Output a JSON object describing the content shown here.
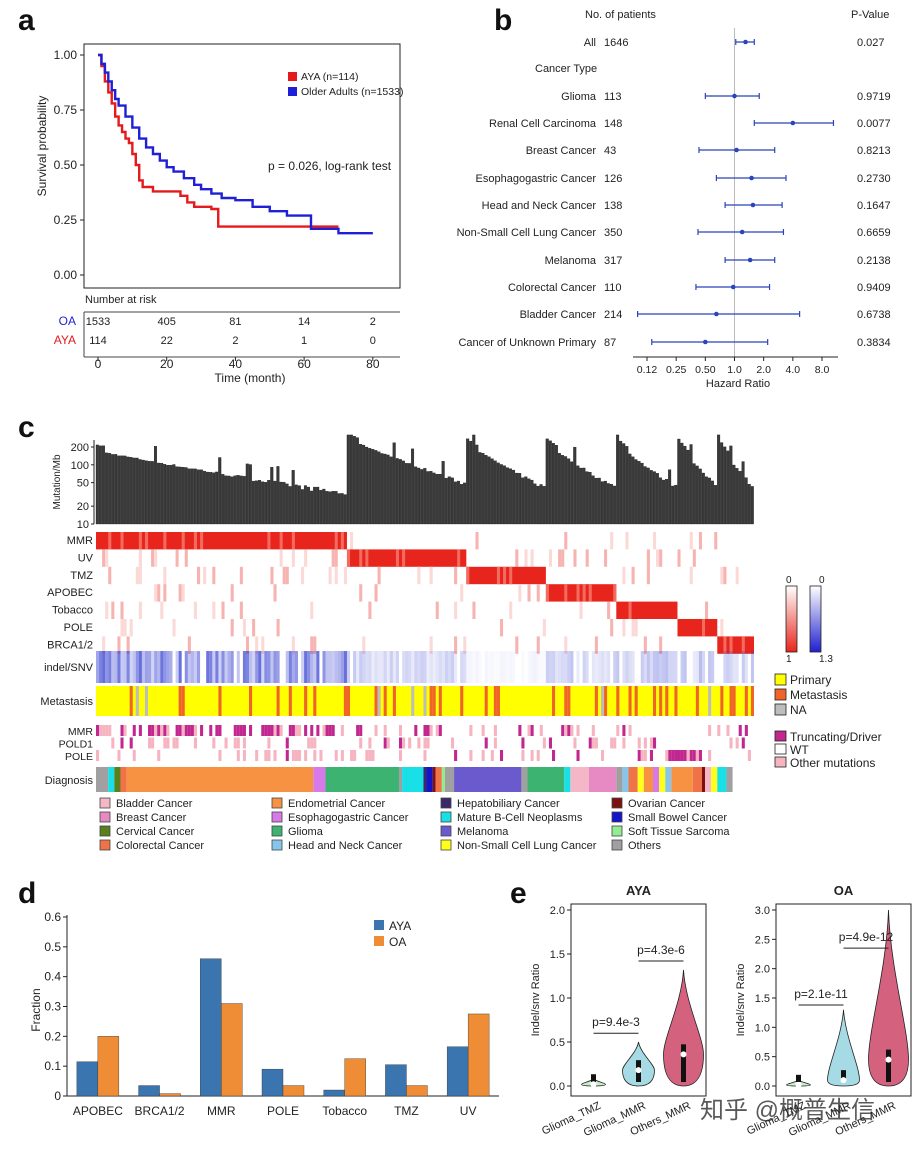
{
  "panels": {
    "a": "a",
    "b": "b",
    "c": "c",
    "d": "d",
    "e": "e"
  },
  "watermark": "知乎 @概普生信",
  "chart_data": [
    {
      "id": "panel_a",
      "type": "line",
      "title": "",
      "xlabel": "Time (month)",
      "ylabel": "Survival probability",
      "xlim": [
        0,
        85
      ],
      "ylim": [
        0,
        1
      ],
      "xticks": [
        0,
        20,
        40,
        60,
        80
      ],
      "yticks": [
        "0.00",
        "0.25",
        "0.50",
        "0.75",
        "1.00"
      ],
      "annotation": "p = 0.026, log-rank test",
      "colors": {
        "AYA": "#e41a1c",
        "OA": "#1f1fd6"
      },
      "series": [
        {
          "name": "AYA (n=114)",
          "color": "#e41a1c",
          "x": [
            0,
            1,
            2,
            3,
            4,
            5,
            6,
            7,
            8,
            9,
            10,
            11,
            12,
            13,
            14,
            16,
            18,
            20,
            22,
            24,
            26,
            28,
            30,
            33,
            35,
            40,
            50,
            60,
            64,
            70
          ],
          "y": [
            1.0,
            0.95,
            0.88,
            0.83,
            0.78,
            0.72,
            0.68,
            0.65,
            0.62,
            0.6,
            0.55,
            0.5,
            0.43,
            0.4,
            0.4,
            0.38,
            0.38,
            0.38,
            0.38,
            0.36,
            0.33,
            0.31,
            0.31,
            0.3,
            0.22,
            0.22,
            0.22,
            0.22,
            0.22,
            0.22
          ]
        },
        {
          "name": "Older Adults (n=1533)",
          "color": "#1f1fd6",
          "x": [
            0,
            1,
            2,
            3,
            4,
            5,
            6,
            8,
            10,
            12,
            14,
            16,
            18,
            20,
            22,
            25,
            28,
            30,
            33,
            36,
            40,
            45,
            50,
            55,
            60,
            62,
            65,
            70,
            75,
            80
          ],
          "y": [
            1.0,
            0.96,
            0.92,
            0.88,
            0.84,
            0.8,
            0.77,
            0.72,
            0.67,
            0.62,
            0.58,
            0.55,
            0.52,
            0.49,
            0.47,
            0.44,
            0.41,
            0.39,
            0.37,
            0.35,
            0.34,
            0.31,
            0.29,
            0.27,
            0.27,
            0.21,
            0.21,
            0.19,
            0.19,
            0.19
          ]
        }
      ],
      "risk_table": {
        "title": "Number at risk",
        "rows": [
          {
            "label": "OA",
            "color": "#1f1fd6",
            "values": [
              "1533",
              "405",
              "81",
              "14",
              "2"
            ]
          },
          {
            "label": "AYA",
            "color": "#e41a1c",
            "values": [
              "114",
              "22",
              "2",
              "1",
              "0"
            ]
          }
        ]
      }
    },
    {
      "id": "panel_b",
      "type": "forest",
      "header_n": "No. of patients",
      "header_p": "P-Value",
      "section_label": "Cancer Type",
      "xlabel": "Hazard Ratio",
      "xticks": [
        "0.12",
        "0.25",
        "0.50",
        "1.0",
        "2.0",
        "4.0",
        "8.0"
      ],
      "xtick_values": [
        0.125,
        0.25,
        0.5,
        1,
        2,
        4,
        8
      ],
      "rows": [
        {
          "label": "All",
          "n": "1646",
          "hr": 1.3,
          "lo": 1.03,
          "hi": 1.6,
          "p": "0.027"
        },
        {
          "label": "Glioma",
          "n": "113",
          "hr": 1.0,
          "lo": 0.5,
          "hi": 1.8,
          "p": "0.9719"
        },
        {
          "label": "Renal Cell Carcinoma",
          "n": "148",
          "hr": 4.0,
          "lo": 1.6,
          "hi": 10.5,
          "p": "0.0077"
        },
        {
          "label": "Breast Cancer",
          "n": "43",
          "hr": 1.05,
          "lo": 0.43,
          "hi": 2.6,
          "p": "0.8213"
        },
        {
          "label": "Esophagogastric Cancer",
          "n": "126",
          "hr": 1.5,
          "lo": 0.65,
          "hi": 3.4,
          "p": "0.2730"
        },
        {
          "label": "Head and Neck Cancer",
          "n": "138",
          "hr": 1.55,
          "lo": 0.8,
          "hi": 3.1,
          "p": "0.1647"
        },
        {
          "label": "Non-Small Cell Lung Cancer",
          "n": "350",
          "hr": 1.2,
          "lo": 0.42,
          "hi": 3.2,
          "p": "0.6659"
        },
        {
          "label": "Melanoma",
          "n": "317",
          "hr": 1.45,
          "lo": 0.8,
          "hi": 2.6,
          "p": "0.2138"
        },
        {
          "label": "Colorectal Cancer",
          "n": "110",
          "hr": 0.97,
          "lo": 0.4,
          "hi": 2.3,
          "p": "0.9409"
        },
        {
          "label": "Bladder Cancer",
          "n": "214",
          "hr": 0.65,
          "lo": 0.1,
          "hi": 4.7,
          "p": "0.6738"
        },
        {
          "label": "Cancer of Unknown Primary",
          "n": "87",
          "hr": 0.5,
          "lo": 0.14,
          "hi": 2.2,
          "p": "0.3834"
        }
      ]
    },
    {
      "id": "panel_c",
      "type": "heatmap",
      "tmb_label": "Mutation/Mb",
      "tmb_ticks": [
        "10",
        "20",
        "50",
        "100",
        "200"
      ],
      "tmb_tick_values": [
        10,
        20,
        50,
        100,
        200
      ],
      "signature_rows": [
        "MMR",
        "UV",
        "TMZ",
        "APOBEC",
        "Tobacco",
        "POLE",
        "BRCA1/2"
      ],
      "ratio_row": "indel/SNV",
      "metastasis_row": "Metastasis",
      "mutation_rows": [
        "MMR",
        "POLD1",
        "POLE"
      ],
      "diagnosis_row": "Diagnosis",
      "scale_red": {
        "min": "0",
        "max": "1"
      },
      "scale_blue": {
        "min": "0",
        "max": "1.3"
      },
      "legend_site": [
        {
          "label": "Primary",
          "color": "#ffff00"
        },
        {
          "label": "Metastasis",
          "color": "#f0642a"
        },
        {
          "label": "NA",
          "color": "#bdbdbd"
        }
      ],
      "legend_mut": [
        {
          "label": "Truncating/Driver",
          "color": "#c1278f"
        },
        {
          "label": "WT",
          "color": "#ffffff"
        },
        {
          "label": "Other mutations",
          "color": "#f6b4c1"
        }
      ],
      "diagnosis_legend": [
        {
          "label": "Bladder Cancer",
          "color": "#f3b7c7"
        },
        {
          "label": "Breast Cancer",
          "color": "#e78ac3"
        },
        {
          "label": "Cervical Cancer",
          "color": "#5a7f1e"
        },
        {
          "label": "Colorectal Cancer",
          "color": "#f07348"
        },
        {
          "label": "Endometrial Cancer",
          "color": "#f79243"
        },
        {
          "label": "Esophagogastric Cancer",
          "color": "#d779e8"
        },
        {
          "label": "Glioma",
          "color": "#3cb371"
        },
        {
          "label": "Head and Neck Cancer",
          "color": "#87c5ea"
        },
        {
          "label": "Hepatobiliary Cancer",
          "color": "#3b2a6b"
        },
        {
          "label": "Mature B-Cell Neoplasms",
          "color": "#19e0e6"
        },
        {
          "label": "Melanoma",
          "color": "#6a5acd"
        },
        {
          "label": "Non-Small Cell Lung Cancer",
          "color": "#ffff1a"
        },
        {
          "label": "Ovarian Cancer",
          "color": "#7a1010"
        },
        {
          "label": "Small Bowel Cancer",
          "color": "#1414c8"
        },
        {
          "label": "Soft Tissue Sarcoma",
          "color": "#90ee90"
        },
        {
          "label": "Others",
          "color": "#a0a0a0"
        }
      ]
    },
    {
      "id": "panel_d",
      "type": "bar",
      "categories": [
        "APOBEC",
        "BRCA1/2",
        "MMR",
        "POLE",
        "Tobacco",
        "TMZ",
        "UV"
      ],
      "series": [
        {
          "name": "AYA",
          "color": "#3b75af",
          "values": [
            0.115,
            0.035,
            0.46,
            0.09,
            0.02,
            0.105,
            0.165
          ]
        },
        {
          "name": "OA",
          "color": "#ef8d36",
          "values": [
            0.2,
            0.008,
            0.31,
            0.035,
            0.125,
            0.035,
            0.275
          ]
        }
      ],
      "ylabel": "Fraction",
      "ylim": [
        0,
        0.6
      ],
      "yticks": [
        "0",
        "0.1",
        "0.2",
        "0.3",
        "0.4",
        "0.5",
        "0.6"
      ]
    },
    {
      "id": "panel_e_aya",
      "type": "violin",
      "title": "AYA",
      "ylabel": "Indel/snv Ratio",
      "ylim": [
        0,
        2.0
      ],
      "yticks": [
        "0.0",
        "0.5",
        "1.0",
        "1.5",
        "2.0"
      ],
      "categories": [
        "Glioma_TMZ",
        "Glioma_MMR",
        "Others_MMR"
      ],
      "colors": [
        "#c8ecc8",
        "#a6dbe6",
        "#d4627e"
      ],
      "medians": [
        0.02,
        0.18,
        0.36
      ],
      "maxima": [
        0.08,
        0.5,
        1.32
      ],
      "comparisons": [
        {
          "label": "p=9.4e-3",
          "from": 0,
          "to": 1,
          "y": 0.6
        },
        {
          "label": "p=4.3e-6",
          "from": 1,
          "to": 2,
          "y": 1.42
        }
      ]
    },
    {
      "id": "panel_e_oa",
      "type": "violin",
      "title": "OA",
      "ylabel": "Indel/snv Ratio",
      "ylim": [
        0,
        3.0
      ],
      "yticks": [
        "0.0",
        "0.5",
        "1.0",
        "1.5",
        "2.0",
        "2.5",
        "3.0"
      ],
      "categories": [
        "Glioma_TMZ",
        "Glioma_MMR",
        "Others_MMR"
      ],
      "colors": [
        "#c8ecc8",
        "#a6dbe6",
        "#d4627e"
      ],
      "medians": [
        0.02,
        0.1,
        0.45
      ],
      "maxima": [
        0.1,
        1.3,
        3.0
      ],
      "comparisons": [
        {
          "label": "p=2.1e-11",
          "from": 0,
          "to": 1,
          "y": 1.38
        },
        {
          "label": "p=4.9e-12",
          "from": 1,
          "to": 2,
          "y": 2.35
        }
      ]
    }
  ]
}
